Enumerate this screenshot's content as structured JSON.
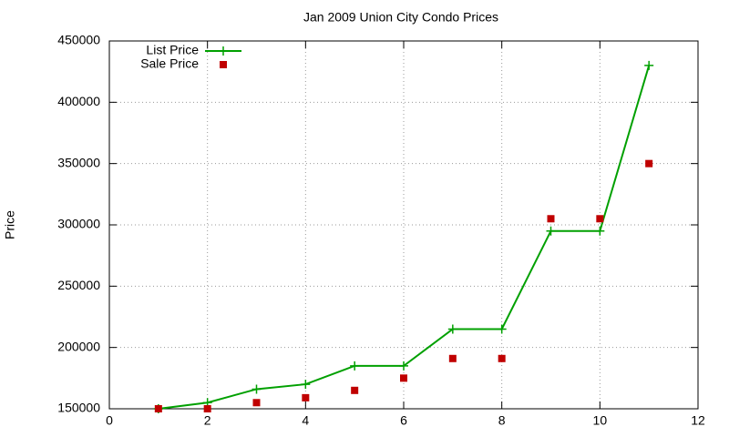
{
  "chart_data": {
    "type": "line",
    "title": "Jan 2009 Union City Condo Prices",
    "y_label": "Price",
    "x": [
      1,
      2,
      3,
      4,
      5,
      6,
      7,
      8,
      9,
      10,
      11
    ],
    "series": [
      {
        "name": "List Price",
        "color": "#00a000",
        "mode": "lines+markers",
        "values": [
          150000,
          155000,
          166000,
          170000,
          185000,
          185000,
          215000,
          215000,
          295000,
          295000,
          430000
        ]
      },
      {
        "name": "Sale Price",
        "color": "#c00000",
        "mode": "markers",
        "values": [
          150000,
          150000,
          155000,
          159000,
          165000,
          175000,
          191000,
          191000,
          305000,
          305000,
          350000
        ]
      }
    ],
    "xlim": [
      0,
      12
    ],
    "xticks": [
      0,
      2,
      4,
      6,
      8,
      10,
      12
    ],
    "ylim": [
      150000,
      450000
    ],
    "yticks": [
      150000,
      200000,
      250000,
      300000,
      350000,
      400000,
      450000
    ],
    "grid": true,
    "legend": "top-left"
  }
}
